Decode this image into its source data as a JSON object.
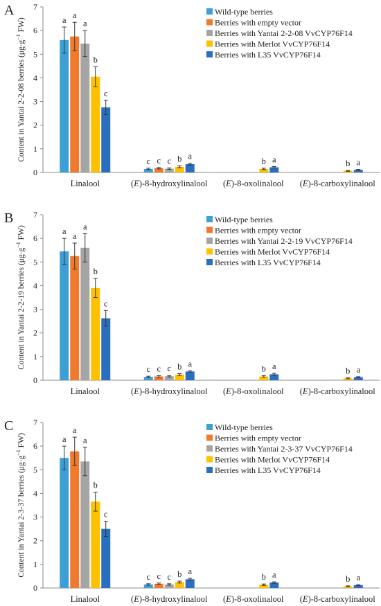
{
  "colors": {
    "wild_type": "#3d9fd6",
    "empty_vector": "#f07a2b",
    "yantai": "#a5a5a5",
    "merlot": "#ffc000",
    "l35": "#2a6fbf",
    "axis": "#888888",
    "text": "#222222"
  },
  "chart_data": [
    {
      "type": "bar",
      "panel_letter": "A",
      "ylabel_prefix": "Content in Yantai 2-2-08 berries",
      "ylabel_unit": "(μg·g",
      "ylabel_unit_sup": "−1",
      "ylabel_unit_suffix": " FW)",
      "ylim": [
        0,
        7
      ],
      "yticks": [
        "0",
        "1",
        "2",
        "3",
        "4",
        "5",
        "6",
        "7"
      ],
      "categories": [
        {
          "prefix": "",
          "italic": "",
          "suffix": "Linalool"
        },
        {
          "prefix": "(",
          "italic": "E",
          "suffix": ")-8-hydroxylinalool"
        },
        {
          "prefix": "(",
          "italic": "E",
          "suffix": ")-8-oxolinalool"
        },
        {
          "prefix": "(",
          "italic": "E",
          "suffix": ")-8-carboxylinalool"
        }
      ],
      "series": [
        {
          "name": "Wild-type berries",
          "values": [
            5.6,
            0.15,
            null,
            null
          ],
          "errors": [
            0.55,
            0.03,
            null,
            null
          ],
          "letters": [
            "a",
            "c",
            "",
            ""
          ]
        },
        {
          "name": "Berries with empty vector",
          "values": [
            5.75,
            0.18,
            null,
            null
          ],
          "errors": [
            0.6,
            0.03,
            null,
            null
          ],
          "letters": [
            "a",
            "c",
            "",
            ""
          ]
        },
        {
          "name": "Berries with Yantai 2-2-08 VvCYP76F14",
          "values": [
            5.45,
            0.16,
            null,
            null
          ],
          "errors": [
            0.55,
            0.03,
            null,
            null
          ],
          "letters": [
            "a",
            "c",
            "",
            ""
          ]
        },
        {
          "name": "Berries with Merlot VvCYP76F14",
          "values": [
            4.05,
            0.24,
            0.15,
            0.07
          ],
          "errors": [
            0.42,
            0.04,
            0.03,
            0.02
          ],
          "letters": [
            "b",
            "b",
            "b",
            "b"
          ]
        },
        {
          "name": "Berries with L35 VvCYP76F14",
          "values": [
            2.75,
            0.35,
            0.22,
            0.11
          ],
          "errors": [
            0.3,
            0.04,
            0.03,
            0.02
          ],
          "letters": [
            "c",
            "a",
            "a",
            "a"
          ]
        }
      ]
    },
    {
      "type": "bar",
      "panel_letter": "B",
      "ylabel_prefix": "Content in Yantai 2-2-19 berries",
      "ylabel_unit": "(μg·g",
      "ylabel_unit_sup": "−1",
      "ylabel_unit_suffix": " FW)",
      "ylim": [
        0,
        7
      ],
      "yticks": [
        "0",
        "1",
        "2",
        "3",
        "4",
        "5",
        "6",
        "7"
      ],
      "categories": [
        {
          "prefix": "",
          "italic": "",
          "suffix": "Linalool"
        },
        {
          "prefix": "(",
          "italic": "E",
          "suffix": ")-8-hydroxylinalool"
        },
        {
          "prefix": "(",
          "italic": "E",
          "suffix": ")-8-oxolinalool"
        },
        {
          "prefix": "(",
          "italic": "E",
          "suffix": ")-8-carboxylinalool"
        }
      ],
      "series": [
        {
          "name": "Wild-type berries",
          "values": [
            5.45,
            0.14,
            null,
            null
          ],
          "errors": [
            0.55,
            0.03,
            null,
            null
          ],
          "letters": [
            "a",
            "c",
            "",
            ""
          ]
        },
        {
          "name": "Berries with empty vector",
          "values": [
            5.25,
            0.16,
            null,
            null
          ],
          "errors": [
            0.55,
            0.03,
            null,
            null
          ],
          "letters": [
            "a",
            "c",
            "",
            ""
          ]
        },
        {
          "name": "Berries with Yantai 2-2-19 VvCYP76F14",
          "values": [
            5.6,
            0.17,
            null,
            null
          ],
          "errors": [
            0.6,
            0.03,
            null,
            null
          ],
          "letters": [
            "a",
            "c",
            "",
            ""
          ]
        },
        {
          "name": "Berries with Merlot VvCYP76F14",
          "values": [
            3.9,
            0.24,
            0.16,
            0.08
          ],
          "errors": [
            0.4,
            0.04,
            0.03,
            0.02
          ],
          "letters": [
            "b",
            "b",
            "b",
            "b"
          ]
        },
        {
          "name": "Berries with L35 VvCYP76F14",
          "values": [
            2.62,
            0.37,
            0.25,
            0.13
          ],
          "errors": [
            0.33,
            0.03,
            0.04,
            0.02
          ],
          "letters": [
            "c",
            "a",
            "a",
            "a"
          ]
        }
      ]
    },
    {
      "type": "bar",
      "panel_letter": "C",
      "ylabel_prefix": "Content in Yantai 2-3-37 berries",
      "ylabel_unit": "(μg·g",
      "ylabel_unit_sup": "−1",
      "ylabel_unit_suffix": " FW)",
      "ylim": [
        0,
        7
      ],
      "yticks": [
        "0",
        "1",
        "2",
        "3",
        "4",
        "5",
        "6",
        "7"
      ],
      "categories": [
        {
          "prefix": "",
          "italic": "",
          "suffix": "Linalool"
        },
        {
          "prefix": "(",
          "italic": "E",
          "suffix": ")-8-hydroxylinalool"
        },
        {
          "prefix": "(",
          "italic": "E",
          "suffix": ")-8-oxolinalool"
        },
        {
          "prefix": "(",
          "italic": "E",
          "suffix": ")-8-carboxylinalool"
        }
      ],
      "series": [
        {
          "name": "Wild-type berries",
          "values": [
            5.5,
            0.15,
            null,
            null
          ],
          "errors": [
            0.5,
            0.03,
            null,
            null
          ],
          "letters": [
            "a",
            "c",
            "",
            ""
          ]
        },
        {
          "name": "Berries with empty vector",
          "values": [
            5.78,
            0.18,
            null,
            null
          ],
          "errors": [
            0.6,
            0.03,
            null,
            null
          ],
          "letters": [
            "a",
            "c",
            "",
            ""
          ]
        },
        {
          "name": "Berries with Yantai 2-3-37 VvCYP76F14",
          "values": [
            5.35,
            0.15,
            null,
            null
          ],
          "errors": [
            0.6,
            0.03,
            null,
            null
          ],
          "letters": [
            "a",
            "c",
            "",
            ""
          ]
        },
        {
          "name": "Berries with Merlot VvCYP76F14",
          "values": [
            3.65,
            0.25,
            0.14,
            0.07
          ],
          "errors": [
            0.4,
            0.04,
            0.03,
            0.02
          ],
          "letters": [
            "b",
            "b",
            "b",
            "b"
          ]
        },
        {
          "name": "Berries with L35 VvCYP76F14",
          "values": [
            2.5,
            0.37,
            0.23,
            0.12
          ],
          "errors": [
            0.32,
            0.04,
            0.03,
            0.02
          ],
          "letters": [
            "c",
            "a",
            "a",
            "a"
          ]
        }
      ]
    }
  ]
}
